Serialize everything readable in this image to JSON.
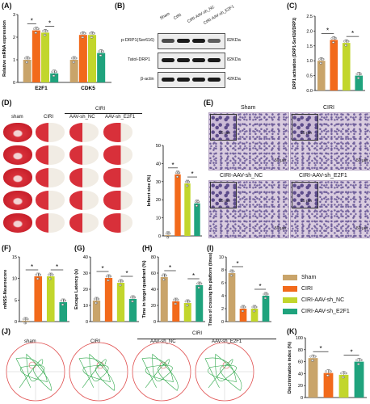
{
  "colors": {
    "sham": "#c9a46a",
    "ciri": "#f26a1b",
    "nc": "#c2d62c",
    "e2f1": "#1fa37d"
  },
  "panel_labels": [
    "(A)",
    "(B)",
    "(C)",
    "(D)",
    "(E)",
    "(F)",
    "(G)",
    "(H)",
    "(I)",
    "(J)",
    "(K)"
  ],
  "sig": "*",
  "blot": {
    "headers": [
      "Sham",
      "CIRI",
      "CIRI-AAV-sh_NC",
      "CIRI-AAV-sh_E2F1"
    ],
    "rows": [
      {
        "name": "p-DRP1(Ser616)",
        "kda": "82KDa"
      },
      {
        "name": "Tatol-DRP1",
        "kda": "82KDa"
      },
      {
        "name": "β-actin",
        "kda": "42KDa"
      }
    ]
  },
  "brains": {
    "group_header": "CIRI",
    "columns": [
      "sham",
      "CIRI",
      "AAV-sh_NC",
      "AAV-sh_E2F1"
    ]
  },
  "histology": {
    "titles": [
      "Sham",
      "CIRI",
      "CIRI-AAV-sh_NC",
      "CIRI-AAV-sh_E2F1"
    ],
    "inset_scale": "25 μm",
    "scale": "50 μm"
  },
  "maze": {
    "group_header": "CIRI",
    "columns": [
      "sham",
      "CIRI",
      "AAV-sh_NC",
      "AAV-sh_E2F1"
    ]
  },
  "legend": [
    "Sham",
    "CIRI",
    "CIRI-AAV-sh_NC",
    "CIRI-AAV-sh_E2F1"
  ],
  "chart_data": [
    {
      "id": "A",
      "type": "bar",
      "categories": [
        "E2F1",
        "CDK5"
      ],
      "series": [
        {
          "name": "Sham",
          "values": [
            1.0,
            1.0
          ]
        },
        {
          "name": "CIRI",
          "values": [
            2.3,
            2.1
          ]
        },
        {
          "name": "CIRI-AAV-sh_NC",
          "values": [
            2.2,
            2.1
          ]
        },
        {
          "name": "CIRI-AAV-sh_E2F1",
          "values": [
            0.4,
            1.3
          ]
        }
      ],
      "ylabel": "Relative mRNA expression",
      "ylim": [
        0,
        3
      ],
      "yticks": [
        "0",
        "1",
        "2",
        "3"
      ]
    },
    {
      "id": "C",
      "type": "bar",
      "categories": [
        "Sham",
        "CIRI",
        "CIRI-AAV-sh_NC",
        "CIRI-AAV-sh_E2F1"
      ],
      "values": [
        1.0,
        1.7,
        1.6,
        0.5
      ],
      "ylabel": "DRP1 activation (DRP1-Ser616/DRP1)",
      "ylim": [
        0,
        2.5
      ],
      "yticks": [
        "0.0",
        "0.5",
        "1.0",
        "1.5",
        "2.0",
        "2.5"
      ]
    },
    {
      "id": "D",
      "type": "bar",
      "categories": [
        "Sham",
        "CIRI",
        "CIRI-AAV-sh_NC",
        "CIRI-AAV-sh_E2F1"
      ],
      "values": [
        0.5,
        34,
        29,
        18
      ],
      "ylabel": "Infarct size (%)",
      "ylim": [
        0,
        50
      ],
      "yticks": [
        "0",
        "10",
        "20",
        "30",
        "40",
        "50"
      ]
    },
    {
      "id": "F",
      "type": "bar",
      "categories": [
        "Sham",
        "CIRI",
        "CIRI-AAV-sh_NC",
        "CIRI-AAV-sh_E2F1"
      ],
      "values": [
        0.2,
        10.5,
        10.5,
        4.5
      ],
      "ylabel": "mNSS-Neuroscore",
      "ylim": [
        0,
        15
      ],
      "yticks": [
        "0",
        "5",
        "10",
        "15"
      ]
    },
    {
      "id": "G",
      "type": "bar",
      "categories": [
        "Sham",
        "CIRI",
        "CIRI-AAV-sh_NC",
        "CIRI-AAV-sh_E2F1"
      ],
      "values": [
        13,
        27,
        24,
        14
      ],
      "ylabel": "Escape Latency (s)",
      "ylim": [
        0,
        40
      ],
      "yticks": [
        "0",
        "10",
        "20",
        "30",
        "40"
      ]
    },
    {
      "id": "H",
      "type": "bar",
      "categories": [
        "Sham",
        "CIRI",
        "CIRI-AAV-sh_NC",
        "CIRI-AAV-sh_E2F1"
      ],
      "values": [
        55,
        25,
        23,
        45
      ],
      "ylabel": "Time in target quadrant (%)",
      "ylim": [
        0,
        80
      ],
      "yticks": [
        "0",
        "20",
        "40",
        "60",
        "80"
      ]
    },
    {
      "id": "I",
      "type": "bar",
      "categories": [
        "Sham",
        "CIRI",
        "CIRI-AAV-sh_NC",
        "CIRI-AAV-sh_E2F1"
      ],
      "values": [
        7.5,
        2,
        2,
        4
      ],
      "ylabel": "Times of crossing the platform (times)",
      "ylim": [
        0,
        10
      ],
      "yticks": [
        "0",
        "2",
        "4",
        "6",
        "8",
        "10"
      ]
    },
    {
      "id": "K",
      "type": "bar",
      "categories": [
        "Sham",
        "CIRI",
        "CIRI-AAV-sh_NC",
        "CIRI-AAV-sh_E2F1"
      ],
      "values": [
        66,
        41,
        38,
        60
      ],
      "ylabel": "Discrimination index (%)",
      "ylim": [
        0,
        100
      ],
      "yticks": [
        "0",
        "20",
        "40",
        "60",
        "80",
        "100"
      ]
    }
  ]
}
